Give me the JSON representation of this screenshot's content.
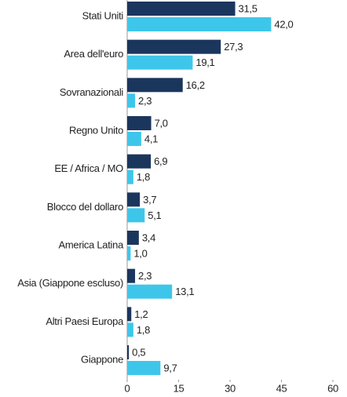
{
  "chart_data": {
    "type": "bar",
    "orientation": "horizontal",
    "categories": [
      "Stati Uniti",
      "Area dell'euro",
      "Sovranazionali",
      "Regno Unito",
      "EE / Africa / MO",
      "Blocco del dollaro",
      "America Latina",
      "Asia (Giappone escluso)",
      "Altri Paesi Europa",
      "Giappone"
    ],
    "series": [
      {
        "color": "#1b365d",
        "values": [
          31.5,
          27.3,
          16.2,
          7.0,
          6.9,
          3.7,
          3.4,
          2.3,
          1.2,
          0.5
        ],
        "value_labels": [
          "31,5",
          "27,3",
          "16,2",
          "7,0",
          "6,9",
          "3,7",
          "3,4",
          "2,3",
          "1,2",
          "0,5"
        ]
      },
      {
        "color": "#3ec6ea",
        "values": [
          42.0,
          19.1,
          2.3,
          4.1,
          1.8,
          5.1,
          1.0,
          13.1,
          1.8,
          9.7
        ],
        "value_labels": [
          "42,0",
          "19,1",
          "2,3",
          "4,1",
          "1,8",
          "5,1",
          "1,0",
          "13,1",
          "1,8",
          "9,7"
        ]
      }
    ],
    "xlim": [
      0,
      60
    ],
    "xticks": [
      0,
      15,
      30,
      45,
      60
    ]
  }
}
